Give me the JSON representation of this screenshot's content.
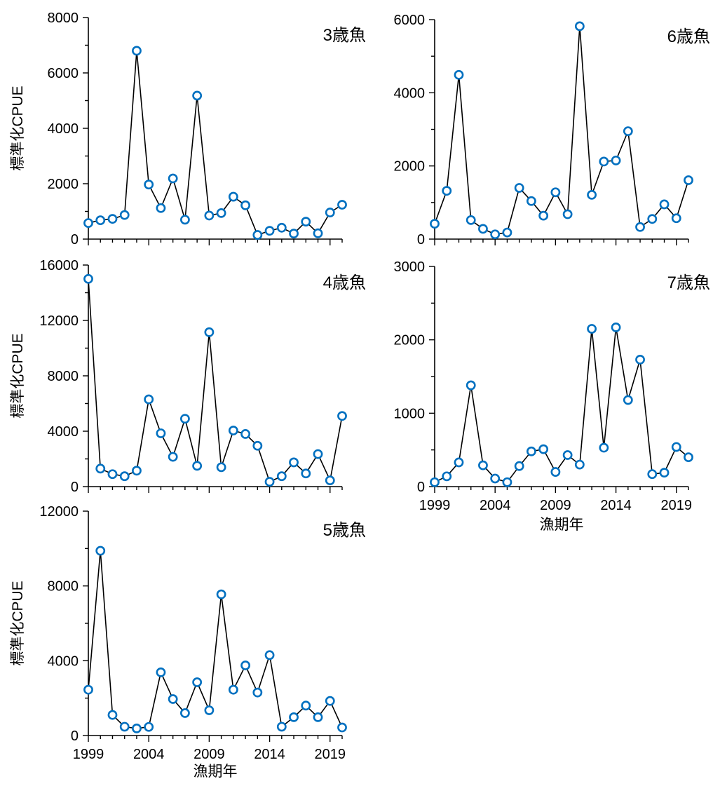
{
  "y_axis_label": "標準化CPUE",
  "x_axis_label": "漁期年",
  "x_tick_labels": [
    "1999",
    "2004",
    "2009",
    "2014",
    "2019"
  ],
  "colors": {
    "line": "#000000",
    "marker_stroke": "#0070C0",
    "marker_fill": "#FFFFFF"
  },
  "chart_data": [
    {
      "type": "line",
      "title": "3歳魚",
      "ylabel": "標準化CPUE",
      "xlabel": "",
      "ylim": [
        0,
        8000
      ],
      "yticks": [
        "8000",
        "6000",
        "4000",
        "2000",
        "0"
      ],
      "x": [
        1999,
        2000,
        2001,
        2002,
        2003,
        2004,
        2005,
        2006,
        2007,
        2008,
        2009,
        2010,
        2011,
        2012,
        2013,
        2014,
        2015,
        2016,
        2017,
        2018,
        2019,
        2020
      ],
      "values": [
        580,
        680,
        730,
        870,
        6800,
        1970,
        1120,
        2190,
        700,
        5180,
        850,
        940,
        1530,
        1220,
        150,
        300,
        410,
        200,
        630,
        210,
        960,
        1240
      ]
    },
    {
      "type": "line",
      "title": "4歳魚",
      "ylabel": "標準化CPUE",
      "xlabel": "",
      "ylim": [
        0,
        16000
      ],
      "yticks": [
        "16000",
        "12000",
        "8000",
        "4000",
        "0"
      ],
      "x": [
        1999,
        2000,
        2001,
        2002,
        2003,
        2004,
        2005,
        2006,
        2007,
        2008,
        2009,
        2010,
        2011,
        2012,
        2013,
        2014,
        2015,
        2016,
        2017,
        2018,
        2019,
        2020
      ],
      "values": [
        15000,
        1300,
        900,
        750,
        1150,
        6300,
        3850,
        2150,
        4900,
        1500,
        11150,
        1400,
        4050,
        3800,
        2950,
        350,
        750,
        1750,
        950,
        2350,
        450,
        5100
      ]
    },
    {
      "type": "line",
      "title": "5歳魚",
      "ylabel": "標準化CPUE",
      "xlabel": "漁期年",
      "ylim": [
        0,
        12000
      ],
      "yticks": [
        "12000",
        "8000",
        "4000",
        "0"
      ],
      "x": [
        1999,
        2000,
        2001,
        2002,
        2003,
        2004,
        2005,
        2006,
        2007,
        2008,
        2009,
        2010,
        2011,
        2012,
        2013,
        2014,
        2015,
        2016,
        2017,
        2018,
        2019,
        2020
      ],
      "values": [
        2450,
        9880,
        1100,
        470,
        380,
        460,
        3380,
        1950,
        1200,
        2850,
        1350,
        7550,
        2450,
        3750,
        2300,
        4300,
        470,
        980,
        1600,
        980,
        1850,
        430
      ]
    },
    {
      "type": "line",
      "title": "6歳魚",
      "ylabel": "",
      "xlabel": "",
      "ylim": [
        0,
        6000
      ],
      "yticks": [
        "6000",
        "4000",
        "2000",
        "0"
      ],
      "x": [
        1999,
        2000,
        2001,
        2002,
        2003,
        2004,
        2005,
        2006,
        2007,
        2008,
        2009,
        2010,
        2011,
        2012,
        2013,
        2014,
        2015,
        2016,
        2017,
        2018,
        2019,
        2020
      ],
      "values": [
        420,
        1320,
        4490,
        520,
        280,
        130,
        180,
        1400,
        1040,
        640,
        1280,
        680,
        5820,
        1210,
        2120,
        2150,
        2950,
        330,
        550,
        950,
        570,
        1610
      ]
    },
    {
      "type": "line",
      "title": "7歳魚",
      "ylabel": "",
      "xlabel": "漁期年",
      "ylim": [
        0,
        3000
      ],
      "yticks": [
        "3000",
        "2000",
        "1000",
        "0"
      ],
      "x": [
        1999,
        2000,
        2001,
        2002,
        2003,
        2004,
        2005,
        2006,
        2007,
        2008,
        2009,
        2010,
        2011,
        2012,
        2013,
        2014,
        2015,
        2016,
        2017,
        2018,
        2019,
        2020
      ],
      "values": [
        60,
        140,
        330,
        1380,
        290,
        110,
        60,
        280,
        480,
        510,
        200,
        430,
        300,
        2150,
        530,
        2170,
        1180,
        1730,
        170,
        190,
        540,
        400
      ]
    }
  ]
}
